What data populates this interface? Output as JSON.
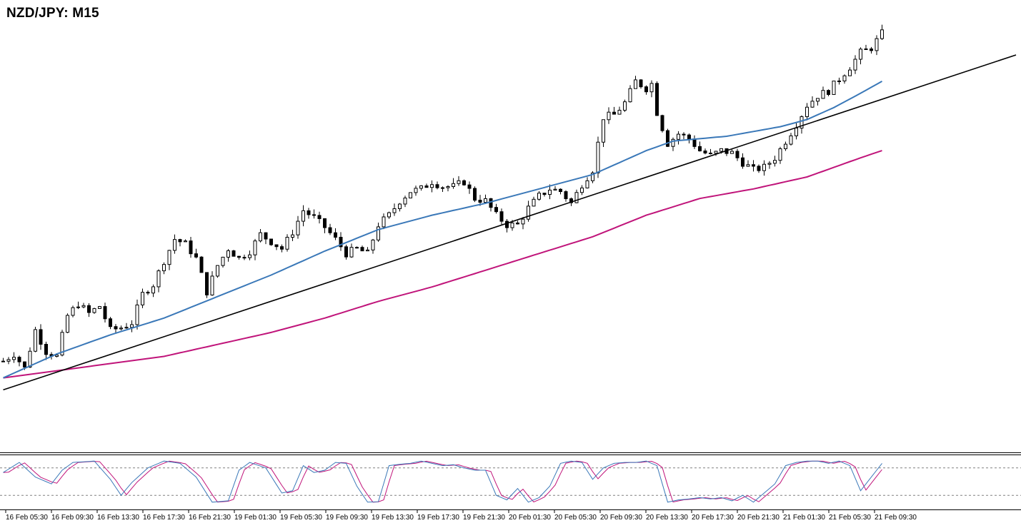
{
  "title": "NZD/JPY: M15",
  "colors": {
    "background": "#ffffff",
    "candle": "#000000",
    "ma_fast": "#3a78b8",
    "ma_slow": "#c0147a",
    "trendline": "#000000",
    "stoch_main": "#3a78b8",
    "stoch_signal": "#c0147a",
    "stoch_levels": "#808080"
  },
  "chart_data": {
    "type": "candlestick",
    "title": "NZD/JPY: M15",
    "x_ticks": [
      "16 Feb 05:30",
      "16 Feb 09:30",
      "16 Feb 13:30",
      "16 Feb 17:30",
      "16 Feb 21:30",
      "19 Feb 01:30",
      "19 Feb 05:30",
      "19 Feb 09:30",
      "19 Feb 13:30",
      "19 Feb 17:30",
      "19 Feb 21:30",
      "20 Feb 01:30",
      "20 Feb 05:30",
      "20 Feb 09:30",
      "20 Feb 13:30",
      "20 Feb 17:30",
      "20 Feb 21:30",
      "21 Feb 01:30",
      "21 Feb 05:30",
      "21 Feb 09:30"
    ],
    "price_keypoints": [
      [
        0,
        25
      ],
      [
        2,
        28
      ],
      [
        4,
        22
      ],
      [
        6,
        38
      ],
      [
        8,
        29
      ],
      [
        10,
        27
      ],
      [
        12,
        44
      ],
      [
        14,
        49
      ],
      [
        16,
        45
      ],
      [
        18,
        48
      ],
      [
        20,
        38
      ],
      [
        22,
        39
      ],
      [
        24,
        41
      ],
      [
        26,
        53
      ],
      [
        28,
        57
      ],
      [
        30,
        67
      ],
      [
        32,
        76
      ],
      [
        34,
        74
      ],
      [
        36,
        68
      ],
      [
        38,
        54
      ],
      [
        40,
        65
      ],
      [
        42,
        72
      ],
      [
        44,
        68
      ],
      [
        46,
        71
      ],
      [
        48,
        78
      ],
      [
        50,
        75
      ],
      [
        52,
        72
      ],
      [
        54,
        79
      ],
      [
        56,
        88
      ],
      [
        58,
        85
      ],
      [
        60,
        81
      ],
      [
        62,
        76
      ],
      [
        64,
        70
      ],
      [
        66,
        72
      ],
      [
        68,
        70
      ],
      [
        70,
        82
      ],
      [
        72,
        86
      ],
      [
        74,
        92
      ],
      [
        76,
        96
      ],
      [
        78,
        97
      ],
      [
        80,
        100
      ],
      [
        82,
        98
      ],
      [
        84,
        98
      ],
      [
        86,
        100
      ],
      [
        88,
        93
      ],
      [
        90,
        92
      ],
      [
        92,
        86
      ],
      [
        94,
        82
      ],
      [
        96,
        82
      ],
      [
        98,
        89
      ],
      [
        100,
        94
      ],
      [
        102,
        97
      ],
      [
        104,
        96
      ],
      [
        106,
        91
      ],
      [
        108,
        99
      ],
      [
        110,
        105
      ],
      [
        112,
        127
      ],
      [
        114,
        128
      ],
      [
        116,
        133
      ],
      [
        118,
        142
      ],
      [
        120,
        139
      ],
      [
        121,
        141
      ],
      [
        122,
        129
      ],
      [
        124,
        116
      ],
      [
        126,
        120
      ],
      [
        128,
        118
      ],
      [
        130,
        113
      ],
      [
        132,
        111
      ],
      [
        134,
        113
      ],
      [
        136,
        112
      ],
      [
        138,
        108
      ],
      [
        140,
        105
      ],
      [
        142,
        106
      ],
      [
        144,
        110
      ],
      [
        146,
        117
      ],
      [
        148,
        124
      ],
      [
        150,
        132
      ],
      [
        152,
        136
      ],
      [
        154,
        138
      ],
      [
        156,
        143
      ],
      [
        158,
        148
      ],
      [
        160,
        154
      ],
      [
        162,
        156
      ],
      [
        164,
        162
      ]
    ],
    "ma_fast_keypoints": [
      [
        0,
        18
      ],
      [
        10,
        28
      ],
      [
        20,
        36
      ],
      [
        30,
        43
      ],
      [
        40,
        52
      ],
      [
        50,
        61
      ],
      [
        60,
        71
      ],
      [
        70,
        80
      ],
      [
        80,
        86
      ],
      [
        90,
        91
      ],
      [
        100,
        97
      ],
      [
        110,
        103
      ],
      [
        120,
        113
      ],
      [
        125,
        117
      ],
      [
        130,
        118
      ],
      [
        135,
        119
      ],
      [
        140,
        121
      ],
      [
        145,
        123
      ],
      [
        150,
        126
      ],
      [
        155,
        131
      ],
      [
        160,
        137
      ],
      [
        164,
        142
      ]
    ],
    "ma_slow_keypoints": [
      [
        0,
        18
      ],
      [
        20,
        24
      ],
      [
        30,
        27
      ],
      [
        40,
        32
      ],
      [
        50,
        37
      ],
      [
        60,
        43
      ],
      [
        70,
        50
      ],
      [
        80,
        56
      ],
      [
        90,
        63
      ],
      [
        100,
        70
      ],
      [
        110,
        77
      ],
      [
        120,
        86
      ],
      [
        130,
        93
      ],
      [
        140,
        97
      ],
      [
        150,
        102
      ],
      [
        160,
        110
      ],
      [
        164,
        113
      ]
    ],
    "trendline": {
      "start": [
        0,
        13
      ],
      "end": [
        189,
        153
      ]
    },
    "stochastic": {
      "main_keypoints": [
        [
          0,
          70
        ],
        [
          3,
          92
        ],
        [
          6,
          60
        ],
        [
          9,
          45
        ],
        [
          11,
          75
        ],
        [
          13,
          92
        ],
        [
          17,
          95
        ],
        [
          20,
          55
        ],
        [
          22,
          20
        ],
        [
          24,
          48
        ],
        [
          27,
          80
        ],
        [
          30,
          95
        ],
        [
          33,
          90
        ],
        [
          36,
          60
        ],
        [
          39,
          5
        ],
        [
          42,
          8
        ],
        [
          44,
          75
        ],
        [
          46,
          92
        ],
        [
          49,
          80
        ],
        [
          52,
          25
        ],
        [
          54,
          30
        ],
        [
          56,
          85
        ],
        [
          58,
          70
        ],
        [
          60,
          75
        ],
        [
          62,
          92
        ],
        [
          64,
          90
        ],
        [
          66,
          40
        ],
        [
          68,
          5
        ],
        [
          70,
          6
        ],
        [
          72,
          85
        ],
        [
          74,
          88
        ],
        [
          76,
          90
        ],
        [
          78,
          95
        ],
        [
          80,
          90
        ],
        [
          82,
          85
        ],
        [
          84,
          87
        ],
        [
          86,
          80
        ],
        [
          88,
          75
        ],
        [
          90,
          75
        ],
        [
          92,
          20
        ],
        [
          94,
          10
        ],
        [
          96,
          35
        ],
        [
          98,
          5
        ],
        [
          100,
          15
        ],
        [
          102,
          40
        ],
        [
          104,
          90
        ],
        [
          106,
          95
        ],
        [
          108,
          92
        ],
        [
          110,
          55
        ],
        [
          112,
          80
        ],
        [
          114,
          90
        ],
        [
          116,
          92
        ],
        [
          118,
          92
        ],
        [
          120,
          95
        ],
        [
          122,
          85
        ],
        [
          124,
          5
        ],
        [
          126,
          10
        ],
        [
          128,
          12
        ],
        [
          130,
          15
        ],
        [
          132,
          12
        ],
        [
          134,
          15
        ],
        [
          136,
          8
        ],
        [
          138,
          20
        ],
        [
          140,
          5
        ],
        [
          142,
          25
        ],
        [
          144,
          45
        ],
        [
          146,
          85
        ],
        [
          148,
          92
        ],
        [
          150,
          95
        ],
        [
          152,
          95
        ],
        [
          154,
          90
        ],
        [
          156,
          95
        ],
        [
          158,
          85
        ],
        [
          160,
          30
        ],
        [
          162,
          60
        ],
        [
          164,
          90
        ]
      ],
      "levels": [
        80,
        20
      ],
      "range": [
        0,
        100
      ]
    },
    "y_range": [
      0,
      170
    ]
  }
}
